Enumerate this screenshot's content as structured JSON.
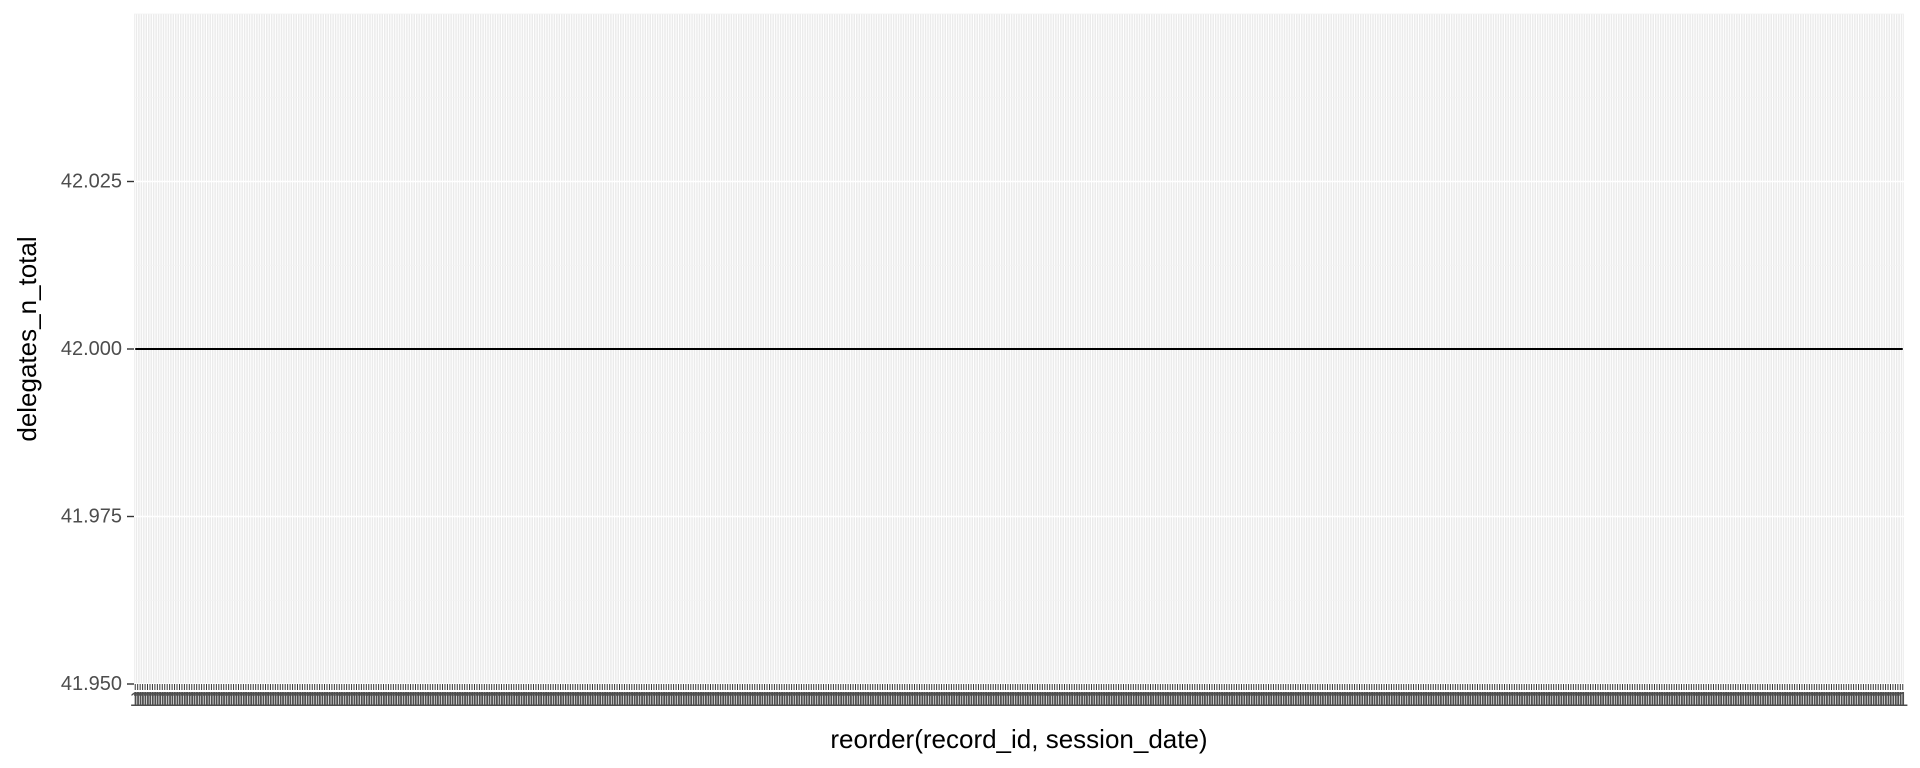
{
  "chart_data": {
    "type": "line",
    "title": "",
    "xlabel": "reorder(record_id, session_date)",
    "ylabel": "delegates_n_total",
    "x_tick_label_text": "1",
    "x_category_count": 720,
    "y_ticks": [
      41.95,
      41.975,
      42.0,
      42.025
    ],
    "y_tick_labels": [
      "41.950",
      "41.975",
      "42.000",
      "42.025"
    ],
    "ylim": [
      41.95,
      42.05
    ],
    "series": [
      {
        "constant_value": 42.0
      }
    ],
    "grid": true,
    "legend": "none",
    "colors": {
      "panel_background": "#ebebeb",
      "grid_major": "#ffffff",
      "grid_minor": "#f2f2f2",
      "line": "#000000",
      "tick_label": "#4d4d4d",
      "tick_mark": "#333333",
      "axis_title": "#000000"
    }
  }
}
